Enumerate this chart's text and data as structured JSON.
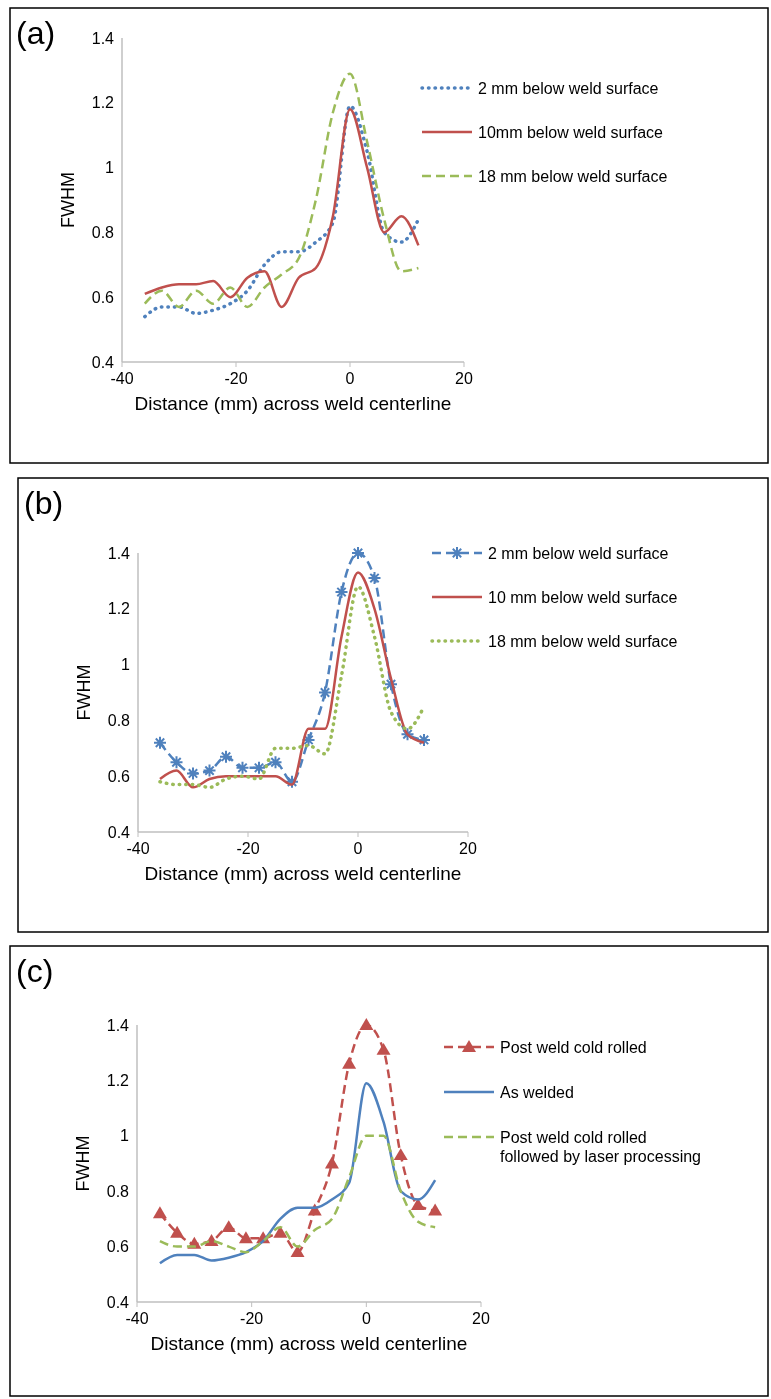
{
  "chart_data": [
    {
      "type": "line",
      "annotations": [
        "(a)"
      ],
      "ylabel": "FWHM",
      "xlabel": "Distance (mm) across weld centerline",
      "xlim": [
        -40,
        20
      ],
      "xticks": [
        -40,
        -20,
        0,
        20
      ],
      "ylim": [
        0.4,
        1.4
      ],
      "yticks": [
        0.4,
        0.6,
        0.8,
        1,
        1.2,
        1.4
      ],
      "legend": "right",
      "x": [
        -36,
        -33,
        -30,
        -27,
        -24,
        -21,
        -18,
        -15,
        -12,
        -9,
        -6,
        -3,
        0,
        3,
        6,
        9,
        12
      ],
      "series": [
        {
          "name": "2 mm below weld surface",
          "color": "#4f81bd",
          "line_style": "dotted",
          "values": [
            0.54,
            0.57,
            0.57,
            0.55,
            0.56,
            0.58,
            0.62,
            0.7,
            0.74,
            0.74,
            0.77,
            0.83,
            1.19,
            1.05,
            0.8,
            0.77,
            0.84
          ]
        },
        {
          "name": "10mm below weld surface",
          "color": "#c0504d",
          "line_style": "solid",
          "values": [
            0.61,
            0.63,
            0.64,
            0.64,
            0.65,
            0.6,
            0.66,
            0.68,
            0.57,
            0.66,
            0.69,
            0.85,
            1.18,
            1.0,
            0.8,
            0.85,
            0.76
          ]
        },
        {
          "name": "18 mm below weld surface",
          "color": "#9bbb59",
          "line_style": "dashed",
          "values": [
            0.58,
            0.62,
            0.57,
            0.62,
            0.58,
            0.63,
            0.57,
            0.63,
            0.67,
            0.72,
            0.9,
            1.17,
            1.29,
            1.08,
            0.84,
            0.68,
            0.69
          ]
        }
      ]
    },
    {
      "type": "line",
      "annotations": [
        "(b)"
      ],
      "ylabel": "FWHM",
      "xlabel": "Distance (mm) across weld centerline",
      "xlim": [
        -40,
        20
      ],
      "xticks": [
        -40,
        -20,
        0,
        20
      ],
      "ylim": [
        0.4,
        1.4
      ],
      "yticks": [
        0.4,
        0.6,
        0.8,
        1,
        1.2,
        1.4
      ],
      "legend": "right",
      "x": [
        -36,
        -33,
        -30,
        -27,
        -24,
        -21,
        -18,
        -15,
        -12,
        -9,
        -6,
        -3,
        0,
        3,
        6,
        9,
        12
      ],
      "series": [
        {
          "name": "2 mm below weld surface",
          "color": "#4f81bd",
          "line_style": "dashed",
          "marker": "cross",
          "values": [
            0.72,
            0.65,
            0.61,
            0.62,
            0.67,
            0.63,
            0.63,
            0.65,
            0.58,
            0.73,
            0.9,
            1.26,
            1.4,
            1.31,
            0.93,
            0.75,
            0.73
          ]
        },
        {
          "name": "10 mm below weld surface",
          "color": "#c0504d",
          "line_style": "solid",
          "values": [
            0.59,
            0.62,
            0.56,
            0.59,
            0.6,
            0.6,
            0.6,
            0.6,
            0.57,
            0.77,
            0.77,
            1.1,
            1.33,
            1.2,
            0.95,
            0.75,
            0.72
          ]
        },
        {
          "name": "18 mm below weld surface",
          "color": "#9bbb59",
          "line_style": "dotted",
          "values": [
            0.58,
            0.57,
            0.57,
            0.56,
            0.59,
            0.6,
            0.59,
            0.7,
            0.7,
            0.71,
            0.68,
            0.96,
            1.28,
            1.1,
            0.83,
            0.77,
            0.85
          ]
        }
      ]
    },
    {
      "type": "line",
      "annotations": [
        "(c)"
      ],
      "ylabel": "FWHM",
      "xlabel": "Distance (mm) across weld centerline",
      "xlim": [
        -40,
        20
      ],
      "xticks": [
        -40,
        -20,
        0,
        20
      ],
      "ylim": [
        0.4,
        1.4
      ],
      "yticks": [
        0.4,
        0.6,
        0.8,
        1,
        1.2,
        1.4
      ],
      "legend": "right",
      "x": [
        -36,
        -33,
        -30,
        -27,
        -24,
        -21,
        -18,
        -15,
        -12,
        -9,
        -6,
        -3,
        0,
        3,
        6,
        9,
        12
      ],
      "series": [
        {
          "name": "Post  weld cold rolled",
          "color": "#c0504d",
          "line_style": "dashed",
          "marker": "triangle",
          "values": [
            0.72,
            0.65,
            0.61,
            0.62,
            0.67,
            0.63,
            0.63,
            0.65,
            0.58,
            0.73,
            0.9,
            1.26,
            1.4,
            1.31,
            0.93,
            0.75,
            0.73
          ]
        },
        {
          "name": "As welded",
          "color": "#4f81bd",
          "line_style": "solid",
          "values": [
            0.54,
            0.57,
            0.57,
            0.55,
            0.56,
            0.58,
            0.62,
            0.7,
            0.74,
            0.74,
            0.77,
            0.83,
            1.19,
            1.05,
            0.8,
            0.77,
            0.84
          ]
        },
        {
          "name": "Post  weld cold rolled\nfollowed by laser processing",
          "color": "#9bbb59",
          "line_style": "dashed",
          "values": [
            0.62,
            0.6,
            0.6,
            0.62,
            0.6,
            0.58,
            0.62,
            0.67,
            0.6,
            0.66,
            0.7,
            0.85,
            1.0,
            1.0,
            0.8,
            0.69,
            0.67
          ]
        }
      ]
    }
  ]
}
